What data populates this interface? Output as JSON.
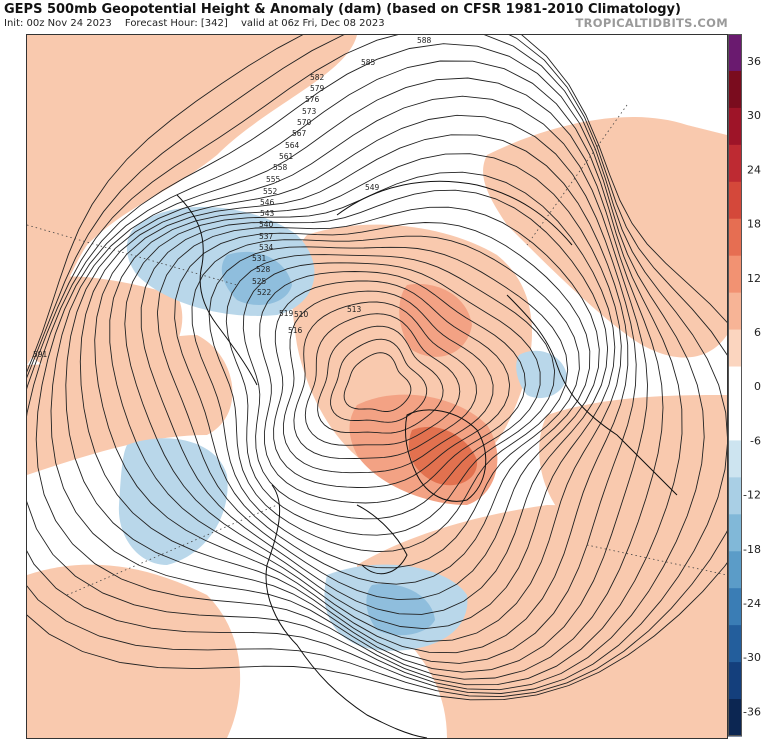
{
  "header": {
    "title": "GEPS 500mb Geopotential Height & Anomaly (dam) (based on CFSR 1981-2010 Climatology)",
    "init": "Init: 00z Nov 24 2023",
    "forecast_hour": "Forecast Hour: [342]",
    "valid": "valid at 06z Fri, Dec 08 2023",
    "brand": "TROPICALTIDBITS.COM"
  },
  "colorbar": {
    "ticks": [
      "36",
      "30",
      "24",
      "18",
      "12",
      "6",
      "0",
      "-6",
      "-12",
      "-18",
      "-24",
      "-30",
      "-36"
    ],
    "colors": [
      "#6a1a6f",
      "#7a0c1e",
      "#9e1428",
      "#be2a32",
      "#d4483a",
      "#e66e52",
      "#f29272",
      "#f7b496",
      "#fbd5bf",
      "#ffffff",
      "#ffffff",
      "#cde4f0",
      "#a9cfe5",
      "#81b8d8",
      "#5b9cc8",
      "#3a7db5",
      "#235e9c",
      "#143f7c",
      "#0c2652"
    ]
  },
  "contour_labels": [
    "588",
    "585",
    "582",
    "579",
    "576",
    "573",
    "570",
    "567",
    "564",
    "561",
    "558",
    "555",
    "552",
    "549",
    "546",
    "543",
    "540",
    "537",
    "534",
    "531",
    "528",
    "525",
    "522",
    "519",
    "516",
    "513",
    "510",
    "591"
  ],
  "map_colors": {
    "warm": "#f9c9ae",
    "warm_mid": "#f3a284",
    "warm_strong": "#e2714f",
    "cold": "#b9d7ea",
    "cold_mid": "#8fbedd",
    "land": "#111111",
    "contour": "#222222"
  }
}
